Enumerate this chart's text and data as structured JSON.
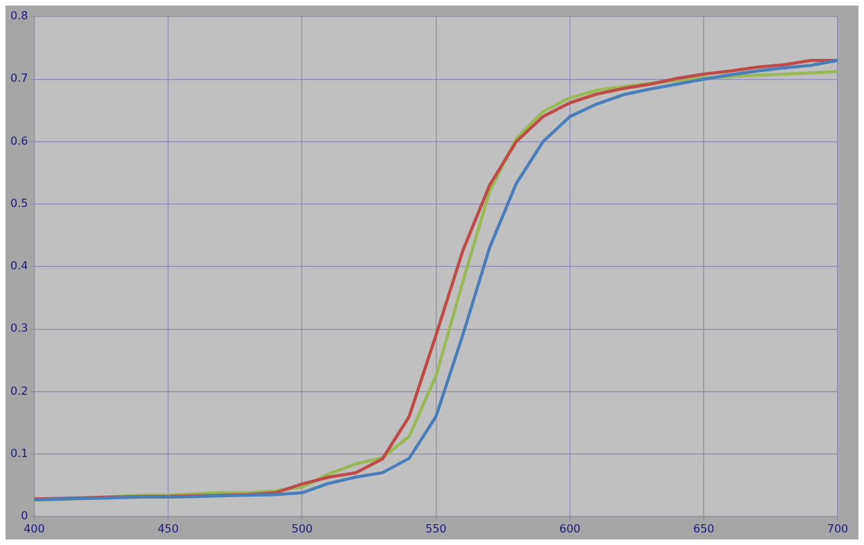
{
  "chart_data": {
    "type": "line",
    "x": [
      400,
      410,
      420,
      430,
      440,
      450,
      460,
      470,
      480,
      490,
      500,
      510,
      520,
      530,
      540,
      550,
      560,
      570,
      580,
      590,
      600,
      610,
      620,
      630,
      640,
      650,
      660,
      670,
      680,
      690,
      700
    ],
    "series": [
      {
        "color": "#4a7ebb",
        "values": [
          0.027,
          0.028,
          0.029,
          0.03,
          0.031,
          0.031,
          0.032,
          0.033,
          0.034,
          0.035,
          0.038,
          0.053,
          0.063,
          0.07,
          0.093,
          0.16,
          0.29,
          0.43,
          0.533,
          0.6,
          0.64,
          0.66,
          0.675,
          0.684,
          0.692,
          0.7,
          0.707,
          0.713,
          0.718,
          0.722,
          0.73
        ]
      },
      {
        "color": "#be4b48",
        "values": [
          0.028,
          0.029,
          0.03,
          0.031,
          0.032,
          0.032,
          0.033,
          0.034,
          0.035,
          0.038,
          0.052,
          0.063,
          0.07,
          0.092,
          0.16,
          0.29,
          0.425,
          0.53,
          0.6,
          0.64,
          0.662,
          0.676,
          0.685,
          0.692,
          0.701,
          0.708,
          0.713,
          0.719,
          0.723,
          0.73,
          0.73
        ]
      },
      {
        "color": "#98b954",
        "values": [
          0.026,
          0.027,
          0.03,
          0.032,
          0.034,
          0.034,
          0.036,
          0.038,
          0.038,
          0.041,
          0.047,
          0.068,
          0.084,
          0.094,
          0.128,
          0.225,
          0.375,
          0.52,
          0.605,
          0.648,
          0.67,
          0.682,
          0.688,
          0.693,
          0.698,
          0.702,
          0.704,
          0.706,
          0.708,
          0.71,
          0.712
        ]
      }
    ],
    "xlim": [
      400,
      700
    ],
    "xticks": [
      400,
      450,
      500,
      550,
      600,
      650,
      700
    ],
    "ylim": [
      0,
      0.8
    ],
    "yticks": [
      0,
      0.1,
      0.2,
      0.3,
      0.4,
      0.5,
      0.6,
      0.7,
      0.8
    ],
    "grid": true,
    "legend": false,
    "marker": "none",
    "line_style": "solid"
  }
}
